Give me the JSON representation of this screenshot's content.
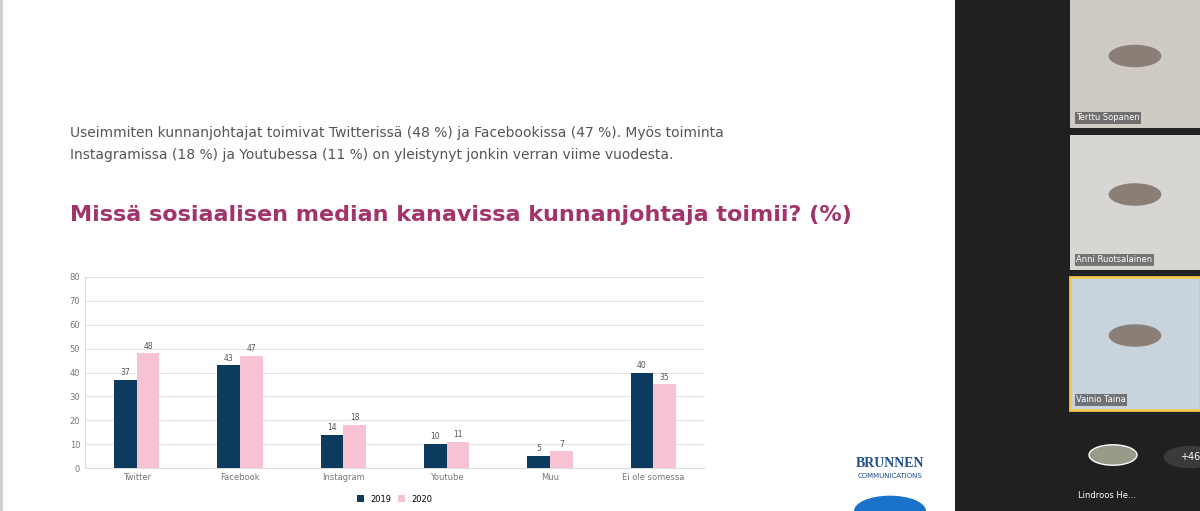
{
  "chart_data": {
    "type": "bar",
    "title": "Missä sosiaalisen median kanavissa kunnanjohtaja toimii? (%)",
    "categories": [
      "Twitter",
      "Facebook",
      "Instagram",
      "Youtube",
      "Muu",
      "Ei ole somessa"
    ],
    "series": [
      {
        "name": "2019",
        "color": "#0d3b5e",
        "values": [
          37,
          43,
          14,
          10,
          5,
          40
        ]
      },
      {
        "name": "2020",
        "color": "#f7c3d2",
        "values": [
          48,
          47,
          18,
          11,
          7,
          35
        ]
      }
    ],
    "ylim": [
      0,
      80
    ],
    "yticks": [
      0,
      10,
      20,
      30,
      40,
      50,
      60,
      70,
      80
    ],
    "grid": true,
    "data_labels": true,
    "legend": "lower center"
  },
  "intro_text": [
    "Useimmiten kunnanjohtajat toimivat Twitterissä (48 %) ja Facebookissa (47 %). Myös toiminta",
    "Instagramissa (18 %) ja Youtubessa (11 %) on yleistynyt jonkin verran viime vuodesta."
  ],
  "logo": [
    "BRUNNEN",
    "COMMUNICATIONS"
  ],
  "participants": [
    "Terttu Sopanen",
    "Anni Ruotsalainen",
    "Vainio Taina",
    "Lindroos He...",
    "+46"
  ]
}
